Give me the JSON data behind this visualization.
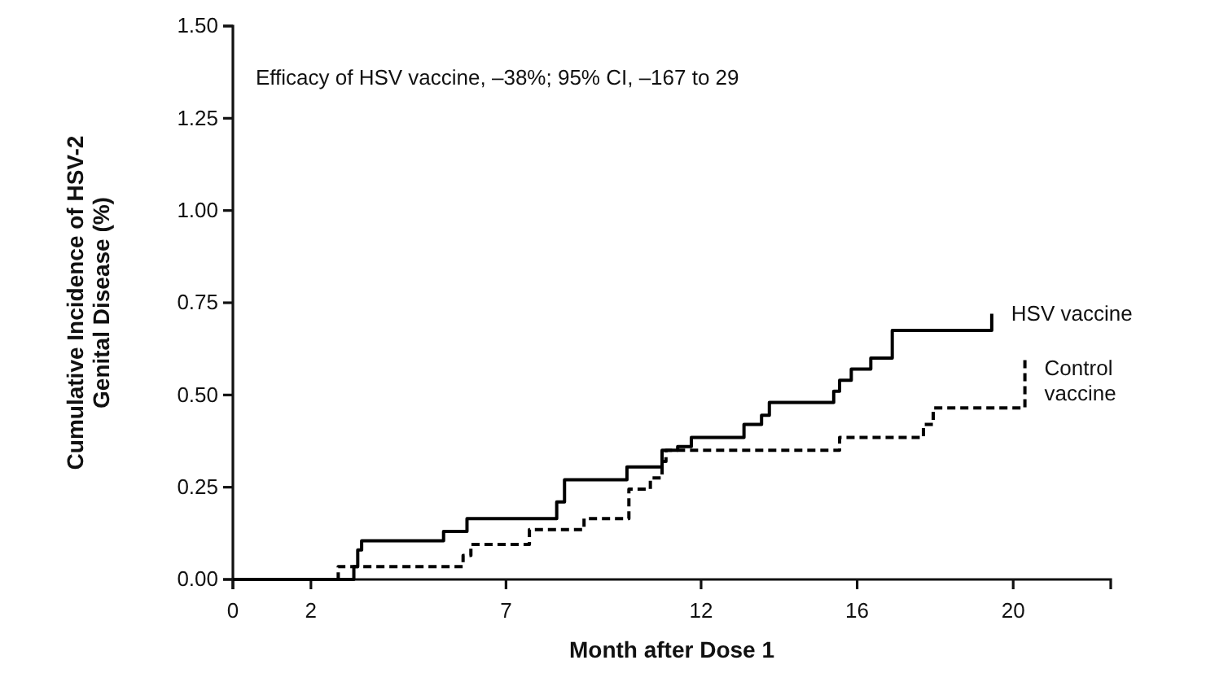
{
  "chart_data": {
    "type": "step",
    "xlabel": "Month after Dose 1",
    "ylabel": "Cumulative Incidence of HSV-2\nGenital Disease (%)",
    "xlim": [
      0,
      22.5
    ],
    "xticks": [
      0,
      2,
      7,
      12,
      16,
      20
    ],
    "ylim": [
      0,
      1.5
    ],
    "yticks": [
      {
        "value": 0,
        "label": "0.00"
      },
      {
        "value": 0.25,
        "label": "0.25"
      },
      {
        "value": 0.5,
        "label": "0.50"
      },
      {
        "value": 0.75,
        "label": "0.75"
      },
      {
        "value": 1,
        "label": "1.00"
      },
      {
        "value": 1.25,
        "label": "1.25"
      },
      {
        "value": 1.5,
        "label": "1.50"
      }
    ],
    "annotations": [
      "Efficacy of HSV vaccine, –38%; 95% CI, –167 to 29"
    ],
    "series": [
      {
        "name": "HSV vaccine",
        "color": "#000000",
        "line_style": "solid",
        "x": [
          0,
          3.1,
          3.2,
          3.3,
          5.4,
          6.0,
          8.3,
          8.5,
          10.1,
          11.0,
          11.4,
          11.75,
          13.1,
          13.55,
          13.75,
          15.4,
          15.55,
          15.85,
          16.35,
          16.9,
          19.45
        ],
        "values": [
          0,
          0.035,
          0.08,
          0.105,
          0.13,
          0.165,
          0.21,
          0.27,
          0.305,
          0.35,
          0.36,
          0.385,
          0.42,
          0.445,
          0.48,
          0.51,
          0.54,
          0.57,
          0.6,
          0.675,
          0.72
        ]
      },
      {
        "name": "Control\nvaccine",
        "color": "#000000",
        "line_style": "dashed",
        "x": [
          0,
          2.7,
          5.9,
          6.1,
          7.6,
          9.0,
          10.15,
          10.7,
          11.0,
          11.1,
          15.55,
          17.7,
          17.95,
          20.3
        ],
        "values": [
          0,
          0.035,
          0.065,
          0.095,
          0.135,
          0.165,
          0.245,
          0.275,
          0.32,
          0.35,
          0.385,
          0.42,
          0.465,
          0.6
        ]
      }
    ]
  }
}
